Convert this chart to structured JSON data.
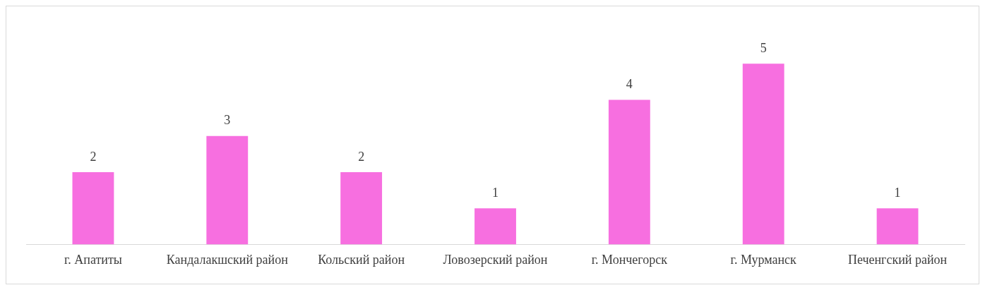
{
  "chart_data": {
    "type": "bar",
    "categories": [
      "г. Апатиты",
      "Кандалакшский район",
      "Кольский район",
      "Ловозерский район",
      "г. Мончегорск",
      "г. Мурманск",
      "Печенгский район"
    ],
    "values": [
      2,
      3,
      2,
      1,
      4,
      5,
      1
    ],
    "color": "#f76fe0",
    "data_labels": true,
    "grid": false,
    "legend": false
  }
}
